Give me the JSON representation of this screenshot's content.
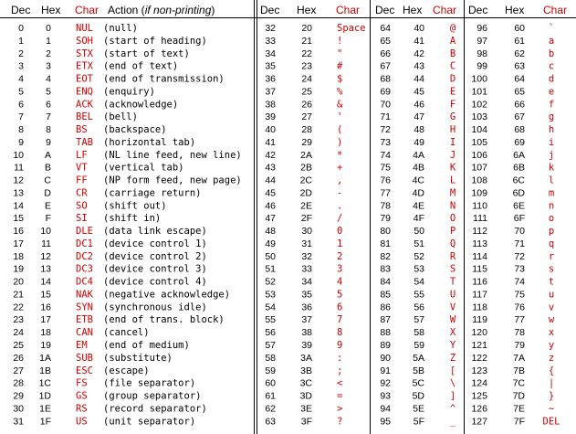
{
  "headers": {
    "dec": "Dec",
    "hex": "Hex",
    "char": "Char",
    "action_prefix": "Action (",
    "action_italic": "if non-printing",
    "action_suffix": ")"
  },
  "control_rows": [
    [
      "0",
      "0",
      "NUL",
      "(null)"
    ],
    [
      "1",
      "1",
      "SOH",
      "(start of heading)"
    ],
    [
      "2",
      "2",
      "STX",
      "(start of text)"
    ],
    [
      "3",
      "3",
      "ETX",
      "(end of text)"
    ],
    [
      "4",
      "4",
      "EOT",
      "(end of transmission)"
    ],
    [
      "5",
      "5",
      "ENQ",
      "(enquiry)"
    ],
    [
      "6",
      "6",
      "ACK",
      "(acknowledge)"
    ],
    [
      "7",
      "7",
      "BEL",
      "(bell)"
    ],
    [
      "8",
      "8",
      "BS",
      "(backspace)"
    ],
    [
      "9",
      "9",
      "TAB",
      "(horizontal tab)"
    ],
    [
      "10",
      "A",
      "LF",
      "(NL line feed, new line)"
    ],
    [
      "11",
      "B",
      "VT",
      "(vertical tab)"
    ],
    [
      "12",
      "C",
      "FF",
      "(NP form feed, new page)"
    ],
    [
      "13",
      "D",
      "CR",
      "(carriage return)"
    ],
    [
      "14",
      "E",
      "SO",
      "(shift out)"
    ],
    [
      "15",
      "F",
      "SI",
      "(shift in)"
    ],
    [
      "16",
      "10",
      "DLE",
      "(data link escape)"
    ],
    [
      "17",
      "11",
      "DC1",
      "(device control 1)"
    ],
    [
      "18",
      "12",
      "DC2",
      "(device control 2)"
    ],
    [
      "19",
      "13",
      "DC3",
      "(device control 3)"
    ],
    [
      "20",
      "14",
      "DC4",
      "(device control 4)"
    ],
    [
      "21",
      "15",
      "NAK",
      "(negative acknowledge)"
    ],
    [
      "22",
      "16",
      "SYN",
      "(synchronous idle)"
    ],
    [
      "23",
      "17",
      "ETB",
      "(end of trans. block)"
    ],
    [
      "24",
      "18",
      "CAN",
      "(cancel)"
    ],
    [
      "25",
      "19",
      "EM",
      "(end of medium)"
    ],
    [
      "26",
      "1A",
      "SUB",
      "(substitute)"
    ],
    [
      "27",
      "1B",
      "ESC",
      "(escape)"
    ],
    [
      "28",
      "1C",
      "FS",
      "(file separator)"
    ],
    [
      "29",
      "1D",
      "GS",
      "(group separator)"
    ],
    [
      "30",
      "1E",
      "RS",
      "(record separator)"
    ],
    [
      "31",
      "1F",
      "US",
      "(unit separator)"
    ]
  ],
  "group2": [
    [
      "32",
      "20",
      "Space"
    ],
    [
      "33",
      "21",
      "!"
    ],
    [
      "34",
      "22",
      "\""
    ],
    [
      "35",
      "23",
      "#"
    ],
    [
      "36",
      "24",
      "$"
    ],
    [
      "37",
      "25",
      "%"
    ],
    [
      "38",
      "26",
      "&"
    ],
    [
      "39",
      "27",
      "'"
    ],
    [
      "40",
      "28",
      "("
    ],
    [
      "41",
      "29",
      ")"
    ],
    [
      "42",
      "2A",
      "*"
    ],
    [
      "43",
      "2B",
      "+"
    ],
    [
      "44",
      "2C",
      ","
    ],
    [
      "45",
      "2D",
      "-"
    ],
    [
      "46",
      "2E",
      "."
    ],
    [
      "47",
      "2F",
      "/"
    ],
    [
      "48",
      "30",
      "0"
    ],
    [
      "49",
      "31",
      "1"
    ],
    [
      "50",
      "32",
      "2"
    ],
    [
      "51",
      "33",
      "3"
    ],
    [
      "52",
      "34",
      "4"
    ],
    [
      "53",
      "35",
      "5"
    ],
    [
      "54",
      "36",
      "6"
    ],
    [
      "55",
      "37",
      "7"
    ],
    [
      "56",
      "38",
      "8"
    ],
    [
      "57",
      "39",
      "9"
    ],
    [
      "58",
      "3A",
      ":"
    ],
    [
      "59",
      "3B",
      ";"
    ],
    [
      "60",
      "3C",
      "<"
    ],
    [
      "61",
      "3D",
      "="
    ],
    [
      "62",
      "3E",
      ">"
    ],
    [
      "63",
      "3F",
      "?"
    ]
  ],
  "group3": [
    [
      "64",
      "40",
      "@"
    ],
    [
      "65",
      "41",
      "A"
    ],
    [
      "66",
      "42",
      "B"
    ],
    [
      "67",
      "43",
      "C"
    ],
    [
      "68",
      "44",
      "D"
    ],
    [
      "69",
      "45",
      "E"
    ],
    [
      "70",
      "46",
      "F"
    ],
    [
      "71",
      "47",
      "G"
    ],
    [
      "72",
      "48",
      "H"
    ],
    [
      "73",
      "49",
      "I"
    ],
    [
      "74",
      "4A",
      "J"
    ],
    [
      "75",
      "4B",
      "K"
    ],
    [
      "76",
      "4C",
      "L"
    ],
    [
      "77",
      "4D",
      "M"
    ],
    [
      "78",
      "4E",
      "N"
    ],
    [
      "79",
      "4F",
      "O"
    ],
    [
      "80",
      "50",
      "P"
    ],
    [
      "81",
      "51",
      "Q"
    ],
    [
      "82",
      "52",
      "R"
    ],
    [
      "83",
      "53",
      "S"
    ],
    [
      "84",
      "54",
      "T"
    ],
    [
      "85",
      "55",
      "U"
    ],
    [
      "86",
      "56",
      "V"
    ],
    [
      "87",
      "57",
      "W"
    ],
    [
      "88",
      "58",
      "X"
    ],
    [
      "89",
      "59",
      "Y"
    ],
    [
      "90",
      "5A",
      "Z"
    ],
    [
      "91",
      "5B",
      "["
    ],
    [
      "92",
      "5C",
      "\\"
    ],
    [
      "93",
      "5D",
      "]"
    ],
    [
      "94",
      "5E",
      "^"
    ],
    [
      "95",
      "5F",
      "_"
    ]
  ],
  "group4": [
    [
      "96",
      "60",
      "`"
    ],
    [
      "97",
      "61",
      "a"
    ],
    [
      "98",
      "62",
      "b"
    ],
    [
      "99",
      "63",
      "c"
    ],
    [
      "100",
      "64",
      "d"
    ],
    [
      "101",
      "65",
      "e"
    ],
    [
      "102",
      "66",
      "f"
    ],
    [
      "103",
      "67",
      "g"
    ],
    [
      "104",
      "68",
      "h"
    ],
    [
      "105",
      "69",
      "i"
    ],
    [
      "106",
      "6A",
      "j"
    ],
    [
      "107",
      "6B",
      "k"
    ],
    [
      "108",
      "6C",
      "l"
    ],
    [
      "109",
      "6D",
      "m"
    ],
    [
      "110",
      "6E",
      "n"
    ],
    [
      "111",
      "6F",
      "o"
    ],
    [
      "112",
      "70",
      "p"
    ],
    [
      "113",
      "71",
      "q"
    ],
    [
      "114",
      "72",
      "r"
    ],
    [
      "115",
      "73",
      "s"
    ],
    [
      "116",
      "74",
      "t"
    ],
    [
      "117",
      "75",
      "u"
    ],
    [
      "118",
      "76",
      "v"
    ],
    [
      "119",
      "77",
      "w"
    ],
    [
      "120",
      "78",
      "x"
    ],
    [
      "121",
      "79",
      "y"
    ],
    [
      "122",
      "7A",
      "z"
    ],
    [
      "123",
      "7B",
      "{"
    ],
    [
      "124",
      "7C",
      "|"
    ],
    [
      "125",
      "7D",
      "}"
    ],
    [
      "126",
      "7E",
      "~"
    ],
    [
      "127",
      "7F",
      "DEL"
    ]
  ]
}
